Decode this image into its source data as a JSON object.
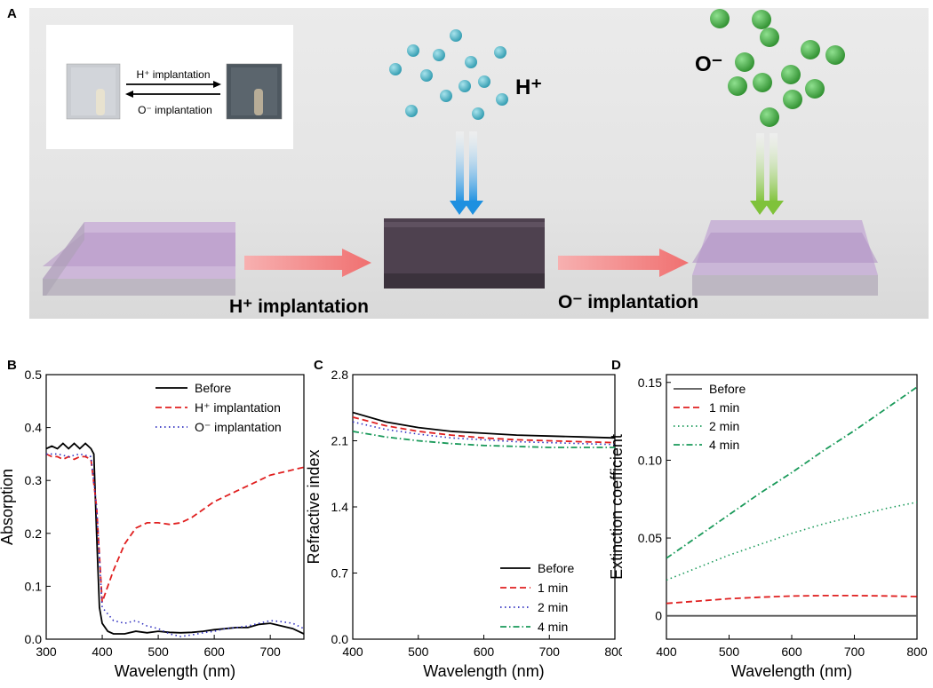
{
  "panel_a": {
    "letter": "A",
    "inset_forward": "H⁺ implantation",
    "inset_reverse": "O⁻ implantation",
    "h_ion": "H⁺",
    "o_ion": "O⁻",
    "step1": "H⁺ implantation",
    "step2": "O⁻ implantation",
    "colors": {
      "film": "#b59cc8",
      "dark_film": "#4b3d4c",
      "h_ball": "#4fb7c8",
      "o_ball": "#45b045",
      "arrow": "#f28a8a",
      "h_arrow": "#2f9be0",
      "o_arrow": "#8cc840"
    }
  },
  "chart_data": [
    {
      "panel": "B",
      "type": "line",
      "title": "",
      "xlabel": "Wavelength (nm)",
      "ylabel": "Absorption",
      "xlim": [
        300,
        760
      ],
      "ylim": [
        0,
        0.5
      ],
      "xticks": [
        300,
        400,
        500,
        600,
        700
      ],
      "yticks": [
        0.0,
        0.1,
        0.2,
        0.3,
        0.4,
        0.5
      ],
      "ytick_labels": [
        "0.0",
        "0.1",
        "0.2",
        "0.3",
        "0.4",
        "0.5"
      ],
      "legend": "top-right",
      "series": [
        {
          "name": "Before",
          "style": "solid",
          "color": "#000000",
          "x": [
            300,
            310,
            320,
            330,
            340,
            350,
            360,
            370,
            380,
            385,
            390,
            395,
            400,
            410,
            420,
            440,
            460,
            480,
            500,
            520,
            540,
            560,
            580,
            600,
            620,
            640,
            660,
            680,
            700,
            720,
            740,
            760
          ],
          "y": [
            0.36,
            0.365,
            0.36,
            0.37,
            0.36,
            0.37,
            0.36,
            0.37,
            0.36,
            0.35,
            0.2,
            0.06,
            0.03,
            0.015,
            0.01,
            0.01,
            0.015,
            0.012,
            0.015,
            0.013,
            0.012,
            0.013,
            0.015,
            0.018,
            0.02,
            0.022,
            0.022,
            0.028,
            0.03,
            0.025,
            0.02,
            0.01
          ]
        },
        {
          "name": "H⁺ implantation",
          "style": "dashed",
          "color": "#e02020",
          "x": [
            300,
            310,
            320,
            330,
            340,
            350,
            360,
            370,
            380,
            390,
            400,
            410,
            420,
            440,
            460,
            480,
            500,
            520,
            540,
            560,
            580,
            600,
            620,
            640,
            660,
            680,
            700,
            720,
            740,
            760
          ],
          "y": [
            0.35,
            0.345,
            0.345,
            0.34,
            0.345,
            0.34,
            0.345,
            0.345,
            0.34,
            0.25,
            0.07,
            0.1,
            0.13,
            0.18,
            0.21,
            0.22,
            0.22,
            0.217,
            0.22,
            0.23,
            0.245,
            0.26,
            0.27,
            0.28,
            0.29,
            0.3,
            0.31,
            0.315,
            0.32,
            0.325
          ]
        },
        {
          "name": "O⁻ implantation",
          "style": "dotted",
          "color": "#3030c0",
          "x": [
            300,
            320,
            340,
            360,
            380,
            390,
            400,
            420,
            440,
            460,
            480,
            500,
            520,
            540,
            560,
            580,
            600,
            620,
            640,
            660,
            680,
            700,
            720,
            740,
            760
          ],
          "y": [
            0.35,
            0.35,
            0.345,
            0.35,
            0.345,
            0.25,
            0.06,
            0.035,
            0.03,
            0.035,
            0.025,
            0.02,
            0.01,
            0.005,
            0.008,
            0.012,
            0.015,
            0.02,
            0.022,
            0.025,
            0.03,
            0.035,
            0.033,
            0.03,
            0.02
          ]
        }
      ]
    },
    {
      "panel": "C",
      "type": "line",
      "title": "",
      "xlabel": "Wavelength (nm)",
      "ylabel": "Refractive index",
      "xlim": [
        400,
        800
      ],
      "ylim": [
        0,
        2.8
      ],
      "xticks": [
        400,
        500,
        600,
        700,
        800
      ],
      "yticks": [
        0,
        0.7,
        1.4,
        2.1,
        2.8
      ],
      "ytick_labels": [
        "0.0",
        "0.7",
        "1.4",
        "2.1",
        "2.8"
      ],
      "legend": "bottom-right",
      "series": [
        {
          "name": "Before",
          "style": "solid",
          "color": "#000000",
          "x": [
            400,
            450,
            500,
            550,
            600,
            650,
            700,
            750,
            800
          ],
          "y": [
            2.4,
            2.3,
            2.24,
            2.2,
            2.18,
            2.16,
            2.15,
            2.14,
            2.13
          ]
        },
        {
          "name": "1 min",
          "style": "dashed",
          "color": "#e02020",
          "x": [
            400,
            450,
            500,
            550,
            600,
            650,
            700,
            750,
            800
          ],
          "y": [
            2.35,
            2.26,
            2.2,
            2.16,
            2.13,
            2.11,
            2.1,
            2.09,
            2.08
          ]
        },
        {
          "name": "2 min",
          "style": "dotted",
          "color": "#3030c0",
          "x": [
            400,
            450,
            500,
            550,
            600,
            650,
            700,
            750,
            800
          ],
          "y": [
            2.3,
            2.22,
            2.17,
            2.13,
            2.11,
            2.09,
            2.08,
            2.07,
            2.06
          ]
        },
        {
          "name": "4 min",
          "style": "dashdot",
          "color": "#1a9a5a",
          "x": [
            400,
            450,
            500,
            550,
            600,
            650,
            700,
            750,
            800
          ],
          "y": [
            2.2,
            2.14,
            2.1,
            2.07,
            2.05,
            2.04,
            2.03,
            2.03,
            2.03
          ]
        }
      ]
    },
    {
      "panel": "D",
      "type": "line",
      "title": "",
      "xlabel": "Wavelength (nm)",
      "ylabel": "Extinction coefficient",
      "xlim": [
        400,
        800
      ],
      "ylim": [
        -0.015,
        0.155
      ],
      "xticks": [
        400,
        500,
        600,
        700,
        800
      ],
      "yticks": [
        0,
        0.05,
        0.1,
        0.15
      ],
      "ytick_labels": [
        "0",
        "0.05",
        "0.10",
        "0.15"
      ],
      "legend": "top-left",
      "series": [
        {
          "name": "Before",
          "style": "solid",
          "color": "#555555",
          "x": [
            400,
            800
          ],
          "y": [
            0,
            0
          ]
        },
        {
          "name": "1 min",
          "style": "dashed",
          "color": "#e02020",
          "x": [
            400,
            450,
            500,
            550,
            600,
            650,
            700,
            750,
            800
          ],
          "y": [
            0.008,
            0.0095,
            0.011,
            0.012,
            0.0127,
            0.013,
            0.013,
            0.0128,
            0.0124
          ]
        },
        {
          "name": "2 min",
          "style": "dotted",
          "color": "#1a9a5a",
          "x": [
            400,
            450,
            500,
            550,
            600,
            650,
            700,
            750,
            800
          ],
          "y": [
            0.023,
            0.031,
            0.039,
            0.046,
            0.053,
            0.059,
            0.064,
            0.069,
            0.073
          ]
        },
        {
          "name": "4 min",
          "style": "dashdot",
          "color": "#1a9a5a",
          "x": [
            400,
            450,
            500,
            550,
            600,
            650,
            700,
            750,
            800
          ],
          "y": [
            0.037,
            0.051,
            0.065,
            0.079,
            0.092,
            0.106,
            0.119,
            0.133,
            0.147
          ]
        }
      ]
    }
  ]
}
